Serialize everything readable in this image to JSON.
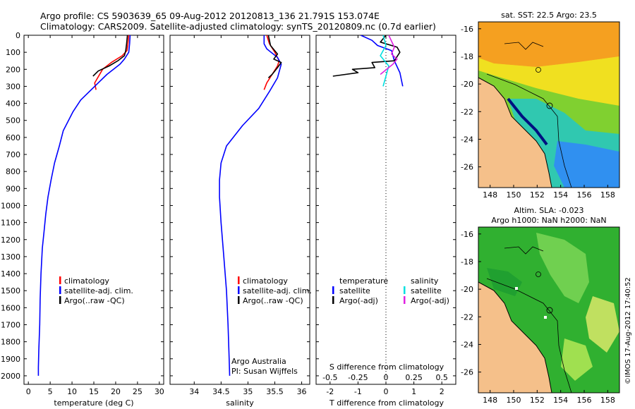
{
  "title": {
    "line1": "Argo profile: CS 5903639_65 09-Aug-2012 20120813_136 21.791S 153.074E",
    "line2": "Climatology: CARS2009. Satellite-adjusted climatology: synTS_20120809.nc (0.7d earlier)"
  },
  "colors": {
    "climatology": "#ff0000",
    "satellite": "#0000ff",
    "argo": "#000000",
    "sat_salinity": "#00e0e0",
    "argo_salinity": "#e020e0",
    "land": "#f5c08a"
  },
  "chart_data": [
    {
      "id": "temperature",
      "type": "line",
      "xlabel": "temperature (deg C)",
      "xlim": [
        -1,
        31
      ],
      "xticks": [
        "0",
        "5",
        "10",
        "15",
        "20",
        "25",
        "30"
      ],
      "ylim": [
        0,
        2050
      ],
      "yticks": [
        "0",
        "100",
        "200",
        "300",
        "400",
        "500",
        "600",
        "700",
        "800",
        "900",
        "1000",
        "1100",
        "1200",
        "1300",
        "1400",
        "1500",
        "1600",
        "1700",
        "1800",
        "1900",
        "2000"
      ],
      "legend": [
        "climatology",
        "satellite-adj. clim.",
        "Argo(..raw -QC)"
      ],
      "series": [
        {
          "name": "climatology",
          "x": [
            23.0,
            22.8,
            22.6,
            21.5,
            19.0,
            17.0,
            15.2,
            15.5
          ],
          "y": [
            0,
            50,
            90,
            120,
            160,
            200,
            280,
            320
          ]
        },
        {
          "name": "satellite-adj. clim.",
          "x": [
            23.3,
            23.2,
            23.0,
            22.0,
            21.0,
            18.0,
            16.0,
            12.0,
            10.2,
            8.0,
            7.1,
            6.0,
            5.2,
            4.5,
            4.0,
            3.6,
            3.2,
            2.9,
            2.7,
            2.6,
            2.4,
            2.3,
            2.3
          ],
          "y": [
            0,
            50,
            100,
            140,
            170,
            230,
            280,
            380,
            450,
            560,
            650,
            750,
            850,
            950,
            1050,
            1150,
            1250,
            1400,
            1550,
            1700,
            1850,
            1950,
            2000
          ]
        },
        {
          "name": "Argo(..raw -QC)",
          "x": [
            22.7,
            22.5,
            22.3,
            22.0,
            20.5,
            18.5,
            16.0,
            14.8
          ],
          "y": [
            0,
            50,
            90,
            120,
            150,
            180,
            210,
            240
          ]
        }
      ]
    },
    {
      "id": "salinity",
      "type": "line",
      "xlabel": "salinity",
      "xlim": [
        33.55,
        36.15
      ],
      "xticks": [
        "34",
        "34.5",
        "35",
        "35.5",
        "36"
      ],
      "ylim": [
        0,
        2050
      ],
      "legend": [
        "climatology",
        "satellite-adj. clim.",
        "Argo(..raw -QC)"
      ],
      "annotation": [
        "Argo Australia",
        "PI: Susan Wijffels"
      ],
      "series": [
        {
          "name": "climatology",
          "x": [
            35.35,
            35.4,
            35.5,
            35.58,
            35.55,
            35.45,
            35.35,
            35.3
          ],
          "y": [
            0,
            50,
            100,
            150,
            180,
            230,
            280,
            320
          ]
        },
        {
          "name": "satellite-adj. clim.",
          "x": [
            35.3,
            35.3,
            35.35,
            35.55,
            35.62,
            35.55,
            35.4,
            35.2,
            34.9,
            34.6,
            34.5,
            34.47,
            34.47,
            34.5,
            34.55,
            34.6,
            34.63,
            34.65,
            34.66
          ],
          "y": [
            0,
            50,
            80,
            130,
            170,
            250,
            330,
            430,
            530,
            650,
            750,
            850,
            950,
            1100,
            1300,
            1500,
            1700,
            1900,
            2000
          ]
        },
        {
          "name": "Argo(..raw -QC)",
          "x": [
            35.38,
            35.42,
            35.55,
            35.48,
            35.62,
            35.55,
            35.5,
            35.45,
            35.38
          ],
          "y": [
            0,
            60,
            110,
            140,
            160,
            190,
            210,
            230,
            250
          ]
        }
      ]
    },
    {
      "id": "difference",
      "type": "line",
      "xlabel_t": "T difference from climatology",
      "xlabel_s": "S difference from climatology",
      "xlim": [
        -2.5,
        2.5
      ],
      "xticks_t": [
        "-2",
        "-1",
        "0",
        "1",
        "2"
      ],
      "xticks_s": [
        "-0.5",
        "-0.25",
        "0",
        "0.25",
        "0.5"
      ],
      "ylim": [
        0,
        2050
      ],
      "legend_t": [
        "temperature",
        "satellite",
        "Argo(-adj)"
      ],
      "legend_s": [
        "salinity",
        "satellite",
        "Argo(-adj)"
      ],
      "series": [
        {
          "name": "T satellite",
          "x": [
            -0.9,
            -0.5,
            -0.3,
            0.2,
            0.3,
            0.5,
            0.6
          ],
          "y": [
            0,
            30,
            60,
            90,
            150,
            220,
            300
          ]
        },
        {
          "name": "T Argo(-adj)",
          "x": [
            0.0,
            -0.2,
            0.4,
            0.5,
            0.3,
            -0.5,
            -0.4,
            -1.2,
            -1.0,
            -1.9
          ],
          "y": [
            0,
            40,
            70,
            100,
            150,
            160,
            190,
            200,
            220,
            240
          ]
        },
        {
          "name": "S satellite",
          "x": [
            -0.1,
            0.0,
            -0.2,
            0.1,
            0.0,
            -0.1
          ],
          "y": [
            0,
            60,
            120,
            180,
            240,
            300
          ]
        },
        {
          "name": "S Argo(-adj)",
          "x": [
            0.1,
            0.3,
            0.2,
            0.4,
            0.25,
            -0.2
          ],
          "y": [
            0,
            70,
            110,
            140,
            170,
            230
          ]
        }
      ]
    }
  ],
  "maps": {
    "top": {
      "title": "sat. SST: 22.5  Argo: 23.5",
      "lat_ticks": [
        "-16",
        "-18",
        "-20",
        "-22",
        "-24",
        "-26"
      ],
      "lon_ticks": [
        "148",
        "150",
        "152",
        "154",
        "156",
        "158"
      ]
    },
    "bottom": {
      "title1": "Altim. SLA: -0.023",
      "title2": "Argo h1000: NaN  h2000: NaN",
      "lat_ticks": [
        "-16",
        "-18",
        "-20",
        "-22",
        "-24",
        "-26"
      ],
      "lon_ticks": [
        "148",
        "150",
        "152",
        "154",
        "156",
        "158"
      ]
    }
  },
  "footer": "©IMOS 17-Aug-2012 17:40:52"
}
